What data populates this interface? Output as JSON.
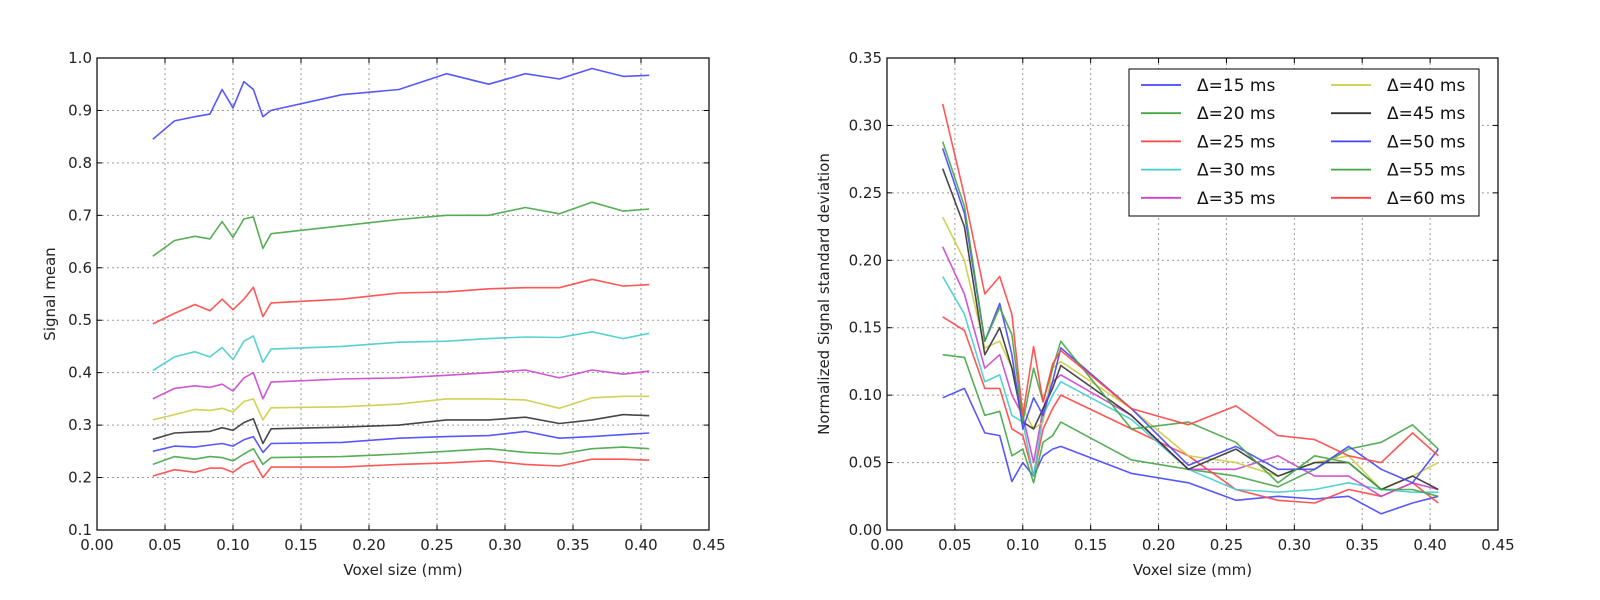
{
  "chart_data": [
    {
      "type": "line",
      "xlabel": "Voxel size (mm)",
      "ylabel": "Signal mean",
      "xlim": [
        0.0,
        0.45
      ],
      "ylim": [
        0.1,
        1.0
      ],
      "xticks": [
        "0.00",
        "0.05",
        "0.10",
        "0.15",
        "0.20",
        "0.25",
        "0.30",
        "0.35",
        "0.40",
        "0.45"
      ],
      "yticks": [
        "0.1",
        "0.2",
        "0.3",
        "0.4",
        "0.5",
        "0.6",
        "0.7",
        "0.8",
        "0.9",
        "1.0"
      ],
      "grid": true,
      "x": [
        0.041,
        0.057,
        0.072,
        0.083,
        0.092,
        0.1,
        0.108,
        0.115,
        0.122,
        0.128,
        0.18,
        0.222,
        0.257,
        0.288,
        0.315,
        0.34,
        0.364,
        0.387,
        0.406
      ],
      "series": [
        {
          "name": "Δ=15 ms",
          "color": "#4545ff",
          "values": [
            0.845,
            0.88,
            0.888,
            0.893,
            0.94,
            0.905,
            0.955,
            0.94,
            0.888,
            0.9,
            0.93,
            0.94,
            0.97,
            0.95,
            0.97,
            0.96,
            0.98,
            0.965,
            0.967
          ]
        },
        {
          "name": "Δ=20 ms",
          "color": "#44a544",
          "values": [
            0.622,
            0.652,
            0.66,
            0.655,
            0.688,
            0.658,
            0.693,
            0.697,
            0.637,
            0.665,
            0.68,
            0.692,
            0.7,
            0.7,
            0.715,
            0.703,
            0.725,
            0.708,
            0.712
          ]
        },
        {
          "name": "Δ=25 ms",
          "color": "#ff4444",
          "values": [
            0.493,
            0.513,
            0.53,
            0.518,
            0.54,
            0.52,
            0.54,
            0.563,
            0.507,
            0.533,
            0.54,
            0.552,
            0.554,
            0.56,
            0.562,
            0.562,
            0.578,
            0.565,
            0.568
          ]
        },
        {
          "name": "Δ=30 ms",
          "color": "#44cccc",
          "values": [
            0.404,
            0.43,
            0.44,
            0.43,
            0.448,
            0.425,
            0.46,
            0.47,
            0.42,
            0.445,
            0.45,
            0.458,
            0.46,
            0.465,
            0.468,
            0.467,
            0.478,
            0.465,
            0.475
          ]
        },
        {
          "name": "Δ=35 ms",
          "color": "#cc44cc",
          "values": [
            0.35,
            0.37,
            0.375,
            0.372,
            0.378,
            0.365,
            0.39,
            0.4,
            0.35,
            0.382,
            0.388,
            0.39,
            0.395,
            0.4,
            0.405,
            0.39,
            0.405,
            0.397,
            0.403
          ]
        },
        {
          "name": "Δ=40 ms",
          "color": "#cccc44",
          "values": [
            0.31,
            0.32,
            0.33,
            0.328,
            0.332,
            0.325,
            0.345,
            0.35,
            0.31,
            0.333,
            0.335,
            0.34,
            0.35,
            0.35,
            0.348,
            0.332,
            0.352,
            0.355,
            0.355
          ]
        },
        {
          "name": "Δ=45 ms",
          "color": "#333333",
          "values": [
            0.273,
            0.285,
            0.287,
            0.288,
            0.295,
            0.29,
            0.305,
            0.312,
            0.265,
            0.293,
            0.296,
            0.3,
            0.31,
            0.31,
            0.315,
            0.303,
            0.31,
            0.32,
            0.318
          ]
        },
        {
          "name": "Δ=50 ms",
          "color": "#4545ff",
          "values": [
            0.25,
            0.26,
            0.258,
            0.262,
            0.265,
            0.26,
            0.272,
            0.278,
            0.248,
            0.265,
            0.267,
            0.275,
            0.278,
            0.28,
            0.288,
            0.275,
            0.278,
            0.282,
            0.285
          ]
        },
        {
          "name": "Δ=55 ms",
          "color": "#44a544",
          "values": [
            0.225,
            0.24,
            0.235,
            0.24,
            0.238,
            0.232,
            0.245,
            0.255,
            0.225,
            0.238,
            0.24,
            0.245,
            0.25,
            0.255,
            0.248,
            0.245,
            0.255,
            0.258,
            0.255
          ]
        },
        {
          "name": "Δ=60 ms",
          "color": "#ff4444",
          "values": [
            0.203,
            0.215,
            0.21,
            0.218,
            0.218,
            0.21,
            0.225,
            0.232,
            0.2,
            0.22,
            0.22,
            0.225,
            0.228,
            0.232,
            0.225,
            0.222,
            0.235,
            0.235,
            0.233
          ]
        }
      ]
    },
    {
      "type": "line",
      "xlabel": "Voxel size (mm)",
      "ylabel": "Normalized Signal standard deviation",
      "xlim": [
        0.0,
        0.45
      ],
      "ylim": [
        0.0,
        0.35
      ],
      "xticks": [
        "0.00",
        "0.05",
        "0.10",
        "0.15",
        "0.20",
        "0.25",
        "0.30",
        "0.35",
        "0.40",
        "0.45"
      ],
      "yticks": [
        "0.00",
        "0.05",
        "0.10",
        "0.15",
        "0.20",
        "0.25",
        "0.30",
        "0.35"
      ],
      "grid": true,
      "legend_position": "top-right",
      "x": [
        0.041,
        0.057,
        0.072,
        0.083,
        0.092,
        0.1,
        0.108,
        0.115,
        0.122,
        0.128,
        0.18,
        0.222,
        0.257,
        0.288,
        0.315,
        0.34,
        0.364,
        0.387,
        0.406
      ],
      "series": [
        {
          "name": "Δ=15 ms",
          "color": "#4545ff",
          "values": [
            0.098,
            0.105,
            0.072,
            0.07,
            0.036,
            0.05,
            0.04,
            0.055,
            0.06,
            0.062,
            0.042,
            0.035,
            0.022,
            0.025,
            0.023,
            0.025,
            0.012,
            0.02,
            0.025
          ]
        },
        {
          "name": "Δ=20 ms",
          "color": "#44a544",
          "values": [
            0.13,
            0.128,
            0.085,
            0.088,
            0.055,
            0.06,
            0.035,
            0.065,
            0.07,
            0.08,
            0.052,
            0.045,
            0.04,
            0.032,
            0.045,
            0.06,
            0.065,
            0.078,
            0.06
          ]
        },
        {
          "name": "Δ=25 ms",
          "color": "#ff4444",
          "values": [
            0.158,
            0.148,
            0.105,
            0.105,
            0.075,
            0.07,
            0.04,
            0.075,
            0.09,
            0.1,
            0.075,
            0.055,
            0.03,
            0.022,
            0.02,
            0.03,
            0.025,
            0.035,
            0.02
          ]
        },
        {
          "name": "Δ=30 ms",
          "color": "#44cccc",
          "values": [
            0.188,
            0.16,
            0.11,
            0.115,
            0.085,
            0.08,
            0.04,
            0.085,
            0.1,
            0.11,
            0.082,
            0.045,
            0.03,
            0.028,
            0.03,
            0.035,
            0.03,
            0.028,
            0.028
          ]
        },
        {
          "name": "Δ=35 ms",
          "color": "#cc44cc",
          "values": [
            0.21,
            0.175,
            0.12,
            0.13,
            0.1,
            0.085,
            0.05,
            0.09,
            0.11,
            0.115,
            0.085,
            0.045,
            0.045,
            0.055,
            0.04,
            0.04,
            0.025,
            0.035,
            0.03
          ]
        },
        {
          "name": "Δ=40 ms",
          "color": "#cccc44",
          "values": [
            0.232,
            0.2,
            0.135,
            0.14,
            0.12,
            0.09,
            0.075,
            0.08,
            0.12,
            0.125,
            0.09,
            0.055,
            0.05,
            0.04,
            0.05,
            0.055,
            0.03,
            0.04,
            0.05
          ]
        },
        {
          "name": "Δ=45 ms",
          "color": "#333333",
          "values": [
            0.268,
            0.225,
            0.13,
            0.15,
            0.12,
            0.08,
            0.075,
            0.09,
            0.105,
            0.122,
            0.085,
            0.045,
            0.06,
            0.04,
            0.05,
            0.05,
            0.03,
            0.04,
            0.03
          ]
        },
        {
          "name": "Δ=50 ms",
          "color": "#4545ff",
          "values": [
            0.283,
            0.235,
            0.14,
            0.168,
            0.13,
            0.075,
            0.098,
            0.085,
            0.11,
            0.135,
            0.09,
            0.048,
            0.062,
            0.045,
            0.045,
            0.062,
            0.045,
            0.035,
            0.06
          ]
        },
        {
          "name": "Δ=55 ms",
          "color": "#44a544",
          "values": [
            0.288,
            0.24,
            0.14,
            0.165,
            0.145,
            0.08,
            0.12,
            0.095,
            0.12,
            0.14,
            0.075,
            0.08,
            0.065,
            0.035,
            0.055,
            0.05,
            0.03,
            0.03,
            0.025
          ]
        },
        {
          "name": "Δ=60 ms",
          "color": "#ff4444",
          "values": [
            0.316,
            0.248,
            0.175,
            0.188,
            0.16,
            0.085,
            0.136,
            0.095,
            0.123,
            0.133,
            0.09,
            0.078,
            0.092,
            0.07,
            0.067,
            0.055,
            0.05,
            0.072,
            0.055
          ]
        }
      ]
    }
  ]
}
